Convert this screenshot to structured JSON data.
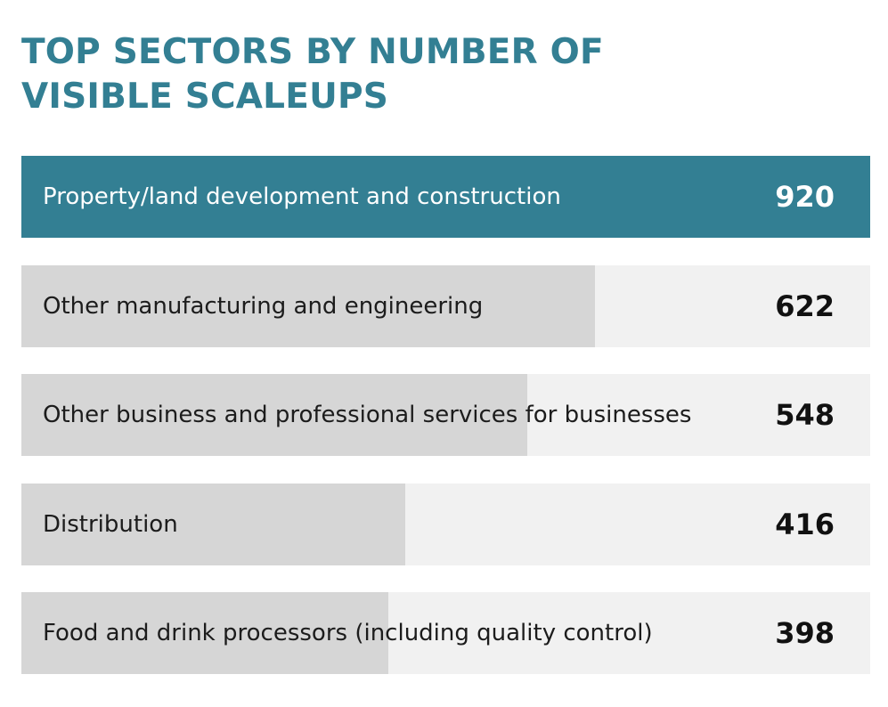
{
  "chart_data": {
    "type": "bar",
    "orientation": "horizontal",
    "title": "TOP SECTORS BY NUMBER OF VISIBLE SCALEUPS",
    "categories": [
      "Property/land development and construction",
      "Other manufacturing and engineering",
      "Other business and professional services for businesses",
      "Distribution",
      "Food and drink processors (including quality control)"
    ],
    "values": [
      920,
      622,
      548,
      416,
      398
    ],
    "xlim": [
      0,
      920
    ],
    "grid": false,
    "legend": "none",
    "colors": {
      "title": "#337f93",
      "top_bar": "#337f93",
      "bar": "#d6d6d6",
      "track": "#f1f1f1",
      "top_text": "#ffffff",
      "text": "#1c1c1c"
    }
  }
}
